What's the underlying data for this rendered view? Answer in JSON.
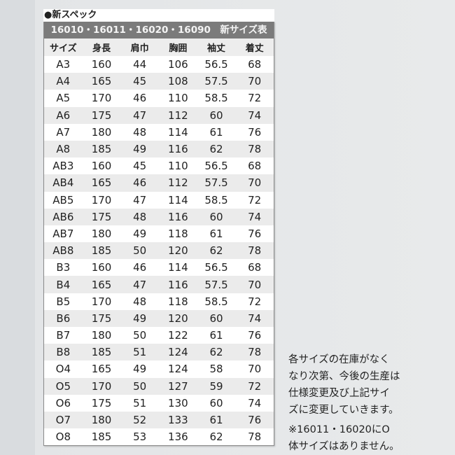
{
  "title": "●新スペック",
  "table_title": "16010・16011・16020・16090　新サイズ表",
  "headers": [
    "サイズ",
    "身長",
    "肩巾",
    "胸囲",
    "袖丈",
    "着丈"
  ],
  "rows": [
    [
      "A3",
      "160",
      "44",
      "106",
      "56.5",
      "68"
    ],
    [
      "A4",
      "165",
      "45",
      "108",
      "57.5",
      "70"
    ],
    [
      "A5",
      "170",
      "46",
      "110",
      "58.5",
      "72"
    ],
    [
      "A6",
      "175",
      "47",
      "112",
      "60",
      "74"
    ],
    [
      "A7",
      "180",
      "48",
      "114",
      "61",
      "76"
    ],
    [
      "A8",
      "185",
      "49",
      "116",
      "62",
      "78"
    ],
    [
      "AB3",
      "160",
      "45",
      "110",
      "56.5",
      "68"
    ],
    [
      "AB4",
      "165",
      "46",
      "112",
      "57.5",
      "70"
    ],
    [
      "AB5",
      "170",
      "47",
      "114",
      "58.5",
      "72"
    ],
    [
      "AB6",
      "175",
      "48",
      "116",
      "60",
      "74"
    ],
    [
      "AB7",
      "180",
      "49",
      "118",
      "61",
      "76"
    ],
    [
      "AB8",
      "185",
      "50",
      "120",
      "62",
      "78"
    ],
    [
      "B3",
      "160",
      "46",
      "114",
      "56.5",
      "68"
    ],
    [
      "B4",
      "165",
      "47",
      "116",
      "57.5",
      "70"
    ],
    [
      "B5",
      "170",
      "48",
      "118",
      "58.5",
      "72"
    ],
    [
      "B6",
      "175",
      "49",
      "120",
      "60",
      "74"
    ],
    [
      "B7",
      "180",
      "50",
      "122",
      "61",
      "76"
    ],
    [
      "B8",
      "185",
      "51",
      "124",
      "62",
      "78"
    ],
    [
      "O4",
      "165",
      "49",
      "124",
      "58",
      "70"
    ],
    [
      "O5",
      "170",
      "50",
      "127",
      "59",
      "72"
    ],
    [
      "O6",
      "175",
      "51",
      "130",
      "60",
      "74"
    ],
    [
      "O7",
      "180",
      "52",
      "133",
      "61",
      "76"
    ],
    [
      "O8",
      "185",
      "53",
      "136",
      "62",
      "78"
    ]
  ],
  "note": {
    "lines": [
      "各サイズの在庫がなく",
      "なり次第、今後の生産は",
      "仕様変更及び上記サイ",
      "ズに変更していきます。"
    ],
    "remark": [
      "※16011・16020にO",
      "体サイズはありません。"
    ]
  }
}
